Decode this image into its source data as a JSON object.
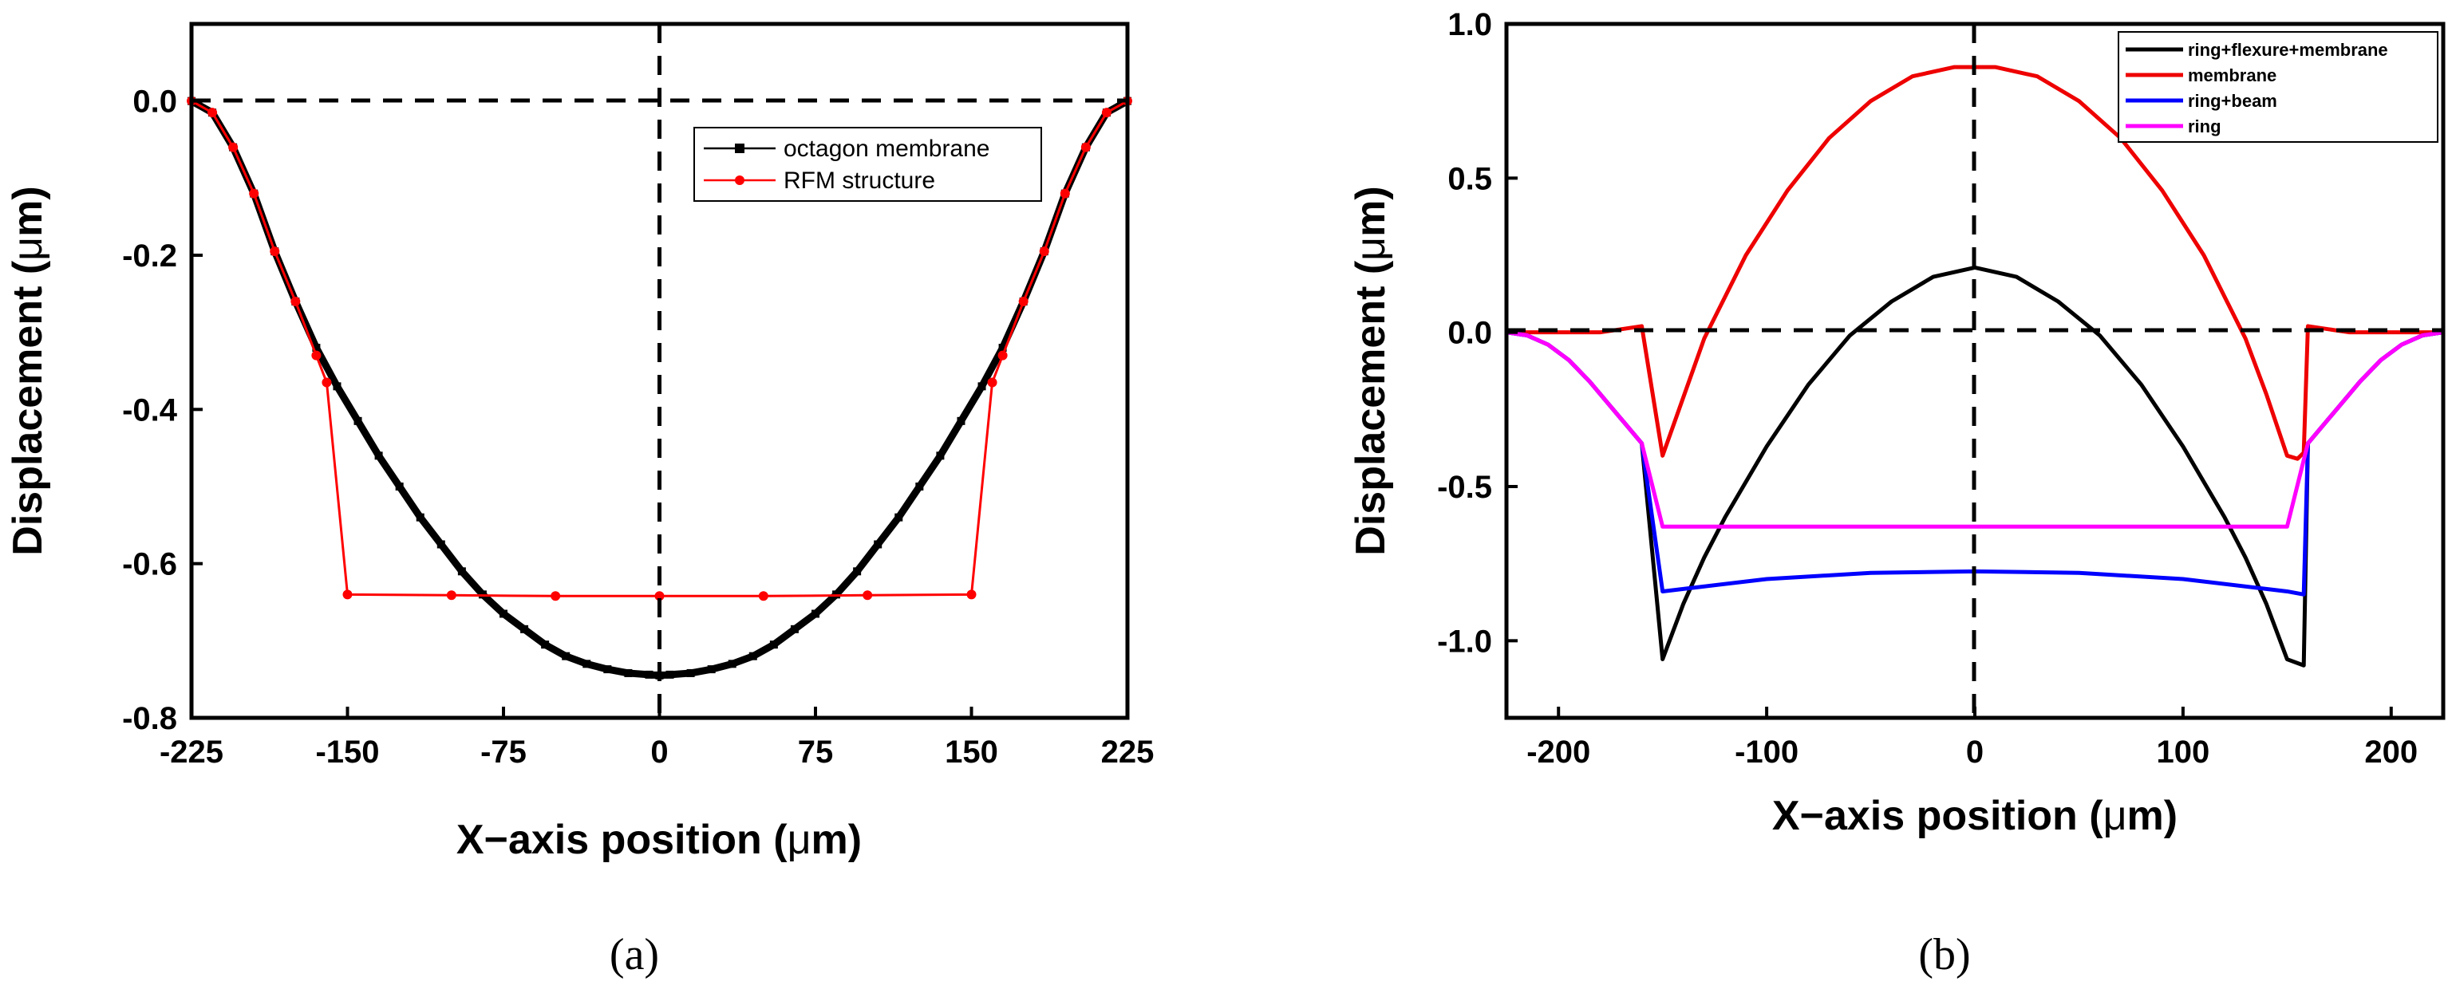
{
  "chart_data": [
    {
      "id": "a",
      "type": "line",
      "caption": "(a)",
      "xlabel_main": "X",
      "xlabel_dash": "−",
      "xlabel_rest": "axis position (",
      "xlabel_mu": "μ",
      "xlabel_unit": "m)",
      "ylabel_main": "Displacement (",
      "ylabel_mu": "μ",
      "ylabel_unit": "m)",
      "xlim": [
        -225,
        225
      ],
      "ylim": [
        -0.8,
        0.1
      ],
      "x_ticks": [
        -225,
        -150,
        -75,
        0,
        75,
        150,
        225
      ],
      "x_tick_labels": [
        "-225",
        "-150",
        "-75",
        "0",
        "75",
        "150",
        "225"
      ],
      "y_ticks": [
        0.0,
        -0.2,
        -0.4,
        -0.6,
        -0.8
      ],
      "y_tick_labels": [
        "0.0",
        "-0.2",
        "-0.4",
        "-0.6",
        "-0.8"
      ],
      "reference_lines": {
        "x": 0,
        "y": 0
      },
      "legend": [
        "octagon membrane",
        "RFM structure"
      ],
      "series": [
        {
          "name": "octagon membrane",
          "color": "#000000",
          "marker": "square",
          "x": [
            -225,
            -215,
            -205,
            -195,
            -185,
            -175,
            -165,
            -155,
            -145,
            -135,
            -125,
            -115,
            -105,
            -95,
            -85,
            -75,
            -65,
            -55,
            -45,
            -35,
            -25,
            -15,
            -5,
            0,
            5,
            15,
            25,
            35,
            45,
            55,
            65,
            75,
            85,
            95,
            105,
            115,
            125,
            135,
            145,
            155,
            165,
            175,
            185,
            195,
            205,
            215,
            225
          ],
          "y": [
            0.0,
            -0.015,
            -0.06,
            -0.12,
            -0.195,
            -0.26,
            -0.32,
            -0.37,
            -0.415,
            -0.46,
            -0.5,
            -0.54,
            -0.575,
            -0.61,
            -0.64,
            -0.665,
            -0.685,
            -0.705,
            -0.72,
            -0.73,
            -0.737,
            -0.742,
            -0.744,
            -0.745,
            -0.744,
            -0.742,
            -0.737,
            -0.73,
            -0.72,
            -0.705,
            -0.685,
            -0.665,
            -0.64,
            -0.61,
            -0.575,
            -0.54,
            -0.5,
            -0.46,
            -0.415,
            -0.37,
            -0.32,
            -0.26,
            -0.195,
            -0.12,
            -0.06,
            -0.015,
            0.0
          ]
        },
        {
          "name": "RFM structure",
          "color": "#ff0000",
          "marker": "circle",
          "x": [
            -225,
            -215,
            -205,
            -195,
            -185,
            -175,
            -165,
            -160,
            -150,
            -100,
            -50,
            0,
            50,
            100,
            150,
            160,
            165,
            175,
            185,
            195,
            205,
            215,
            225
          ],
          "y": [
            0.0,
            -0.015,
            -0.06,
            -0.12,
            -0.195,
            -0.26,
            -0.33,
            -0.365,
            -0.64,
            -0.641,
            -0.642,
            -0.642,
            -0.642,
            -0.641,
            -0.64,
            -0.365,
            -0.33,
            -0.26,
            -0.195,
            -0.12,
            -0.06,
            -0.015,
            0.0
          ]
        }
      ]
    },
    {
      "id": "b",
      "type": "line",
      "caption": "(b)",
      "xlabel_main": "X",
      "xlabel_dash": "−",
      "xlabel_rest": "axis position (",
      "xlabel_mu": "μ",
      "xlabel_unit": "m)",
      "ylabel_main": "Displacement (",
      "ylabel_mu": "μ",
      "ylabel_unit": "m)",
      "xlim": [
        -225,
        225
      ],
      "ylim": [
        -1.25,
        1.0
      ],
      "x_ticks": [
        -200,
        -100,
        0,
        100,
        200
      ],
      "x_tick_labels": [
        "-200",
        "-100",
        "0",
        "100",
        "200"
      ],
      "y_ticks": [
        1.0,
        0.5,
        0.0,
        -0.5,
        -1.0
      ],
      "y_tick_labels": [
        "1.0",
        "0.5",
        "0.0",
        "-0.5",
        "-1.0"
      ],
      "reference_lines": {
        "x": 0,
        "y": 0
      },
      "legend": [
        "ring+flexure+membrane",
        "membrane",
        "ring+beam",
        "ring"
      ],
      "series": [
        {
          "name": "ring+flexure+membrane",
          "color": "#000000",
          "x": [
            -225,
            -215,
            -205,
            -195,
            -185,
            -175,
            -160,
            -150,
            -140,
            -130,
            -120,
            -100,
            -80,
            -60,
            -40,
            -20,
            0,
            20,
            40,
            60,
            80,
            100,
            120,
            130,
            140,
            150,
            158,
            160,
            175,
            185,
            195,
            205,
            215,
            225
          ],
          "y": [
            0.0,
            -0.01,
            -0.04,
            -0.09,
            -0.16,
            -0.24,
            -0.36,
            -1.06,
            -0.88,
            -0.73,
            -0.6,
            -0.37,
            -0.17,
            -0.01,
            0.1,
            0.18,
            0.21,
            0.18,
            0.1,
            -0.01,
            -0.17,
            -0.37,
            -0.6,
            -0.73,
            -0.88,
            -1.06,
            -1.08,
            -0.36,
            -0.24,
            -0.16,
            -0.09,
            -0.04,
            -0.01,
            0.0
          ]
        },
        {
          "name": "membrane",
          "color": "#ee0000",
          "x": [
            -225,
            -200,
            -180,
            -170,
            -160,
            -150,
            -130,
            -110,
            -90,
            -70,
            -50,
            -30,
            -10,
            0,
            10,
            30,
            50,
            70,
            90,
            110,
            130,
            140,
            150,
            155,
            158,
            160,
            170,
            180,
            200,
            225
          ],
          "y": [
            0.0,
            0.0,
            0.0,
            0.01,
            0.02,
            -0.4,
            -0.02,
            0.25,
            0.46,
            0.63,
            0.75,
            0.83,
            0.86,
            0.86,
            0.86,
            0.83,
            0.75,
            0.63,
            0.46,
            0.25,
            -0.02,
            -0.2,
            -0.4,
            -0.41,
            -0.39,
            0.02,
            0.01,
            0.0,
            0.0,
            0.0
          ]
        },
        {
          "name": "ring+beam",
          "color": "#0000ff",
          "x": [
            -225,
            -215,
            -205,
            -195,
            -185,
            -175,
            -160,
            -150,
            -100,
            -50,
            0,
            50,
            100,
            150,
            158,
            160,
            175,
            185,
            195,
            205,
            215,
            225
          ],
          "y": [
            0.0,
            -0.01,
            -0.04,
            -0.09,
            -0.16,
            -0.24,
            -0.36,
            -0.84,
            -0.8,
            -0.78,
            -0.775,
            -0.78,
            -0.8,
            -0.84,
            -0.85,
            -0.36,
            -0.24,
            -0.16,
            -0.09,
            -0.04,
            -0.01,
            0.0
          ]
        },
        {
          "name": "ring",
          "color": "#ff00ff",
          "x": [
            -225,
            -215,
            -205,
            -195,
            -185,
            -175,
            -160,
            -150,
            0,
            150,
            160,
            175,
            185,
            195,
            205,
            215,
            225
          ],
          "y": [
            0.0,
            -0.01,
            -0.04,
            -0.09,
            -0.16,
            -0.24,
            -0.36,
            -0.63,
            -0.63,
            -0.63,
            -0.36,
            -0.24,
            -0.16,
            -0.09,
            -0.04,
            -0.01,
            0.0
          ]
        }
      ]
    }
  ]
}
